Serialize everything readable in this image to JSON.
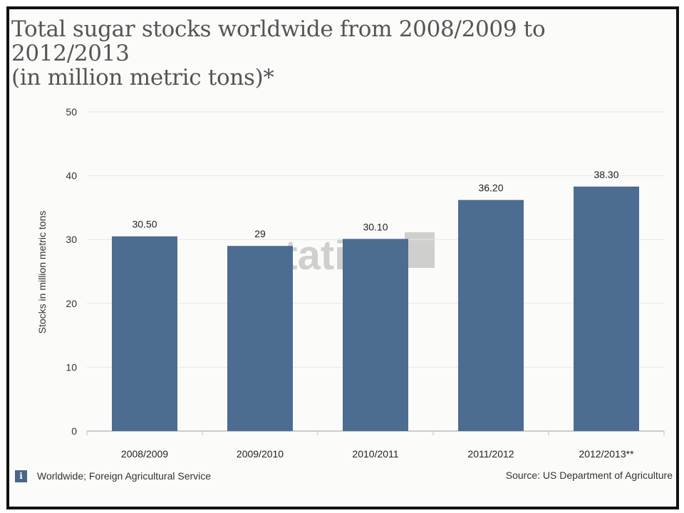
{
  "chart_data": {
    "type": "bar",
    "title_line1": "Total sugar stocks worldwide from 2008/2009 to 2012/2013",
    "title_line2": "(in million metric tons)*",
    "categories": [
      "2008/2009",
      "2009/2010",
      "2010/2011",
      "2011/2012",
      "2012/2013**"
    ],
    "values": [
      30.5,
      29,
      30.1,
      36.2,
      38.3
    ],
    "value_labels": [
      "30.50",
      "29",
      "30.10",
      "36.20",
      "38.30"
    ],
    "xlabel": "",
    "ylabel": "Stocks in million metric tons",
    "ylim": [
      0,
      50
    ],
    "yticks": [
      0,
      10,
      20,
      30,
      40,
      50
    ],
    "grid": true,
    "legend": "none",
    "bar_color": "#4d6c91",
    "watermark": "statista"
  },
  "footer": {
    "info_icon": "info-icon",
    "info_icon_glyph": "i",
    "region_note": "Worldwide; Foreign Agricultural Service",
    "source": "Source: US Department of Agriculture"
  }
}
